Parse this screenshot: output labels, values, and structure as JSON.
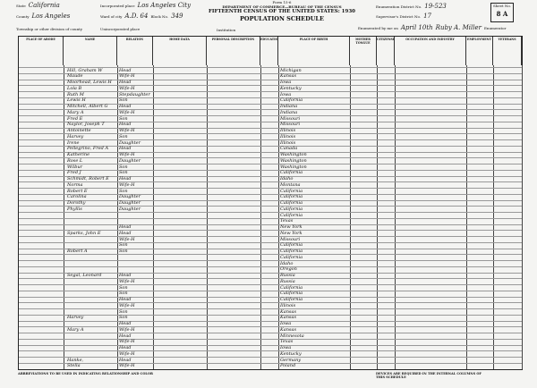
{
  "header": {
    "state_label": "State",
    "state": "California",
    "county_label": "County",
    "county": "Los Angeles",
    "township_label": "Township or other division of county",
    "place_label": "Incorporated place",
    "place": "Los Angeles City",
    "ward_label": "Ward of city",
    "ward": "A.D. 64",
    "block_label": "Block No.",
    "block": "349",
    "unincorporated_label": "Unincorporated place",
    "institution_label": "Institution",
    "form": "Form 15-6",
    "department": "DEPARTMENT OF COMMERCE—BUREAU OF THE CENSUS",
    "title": "FIFTEENTH CENSUS OF THE UNITED STATES: 1930",
    "subtitle": "POPULATION SCHEDULE",
    "enumeration_label": "Enumeration District No.",
    "enumeration": "19-523",
    "supervisor_label": "Supervisor's District No.",
    "supervisor": "17",
    "enumerated_label": "Enumerated by me on",
    "enumerated_date": "April 10th",
    "enumerator": "Ruby A. Miller",
    "enumerator_suffix": "Enumerator",
    "sheet_label": "Sheet No.",
    "sheet": "8 A"
  },
  "columns": [
    "PLACE OF ABODE",
    "NAME",
    "RELATION",
    "HOME DATA",
    "PERSONAL DESCRIPTION",
    "EDUCATION",
    "PLACE OF BIRTH",
    "MOTHER TONGUE",
    "CITIZENSHIP",
    "OCCUPATION AND INDUSTRY",
    "EMPLOYMENT",
    "VETERANS"
  ],
  "rows": [
    {
      "name": "Hill, Graham W",
      "rel": "Head",
      "birth": "Michigan"
    },
    {
      "name": "Maude",
      "rel": "Wife-H",
      "birth": "Kansas"
    },
    {
      "name": "Moorhead, Lewis H",
      "rel": "Head",
      "birth": "Iowa"
    },
    {
      "name": "Lola B",
      "rel": "Wife-H",
      "birth": "Kentucky"
    },
    {
      "name": "Ruth M",
      "rel": "Stepdaughter",
      "birth": "Iowa"
    },
    {
      "name": "Lewis H",
      "rel": "Son",
      "birth": "California"
    },
    {
      "name": "Mitchell, Albert G",
      "rel": "Head",
      "birth": "Indiana"
    },
    {
      "name": "Mary A",
      "rel": "Wife-H",
      "birth": "Indiana"
    },
    {
      "name": "Fred E",
      "rel": "Son",
      "birth": "Missouri"
    },
    {
      "name": "Naylor, Joseph T",
      "rel": "Head",
      "birth": "Missouri"
    },
    {
      "name": "Antoinette",
      "rel": "Wife-H",
      "birth": "Illinois"
    },
    {
      "name": "Harvey",
      "rel": "Son",
      "birth": "Illinois"
    },
    {
      "name": "Irene",
      "rel": "Daughter",
      "birth": "Illinois"
    },
    {
      "name": "Pellegrino, Fred A",
      "rel": "Head",
      "birth": "Canada"
    },
    {
      "name": "Katherine",
      "rel": "Wife-H",
      "birth": "Washington"
    },
    {
      "name": "Rose L",
      "rel": "Daughter",
      "birth": "Washington"
    },
    {
      "name": "Wilbur",
      "rel": "Son",
      "birth": "Washington"
    },
    {
      "name": "Fred J",
      "rel": "Son",
      "birth": "California"
    },
    {
      "name": "Schmidt, Robert E",
      "rel": "Head",
      "birth": "Idaho"
    },
    {
      "name": "Norma",
      "rel": "Wife-H",
      "birth": "Montana"
    },
    {
      "name": "Robert E",
      "rel": "Son",
      "birth": "California"
    },
    {
      "name": "Carolina",
      "rel": "Daughter",
      "birth": "California"
    },
    {
      "name": "Dorothy",
      "rel": "Daughter",
      "birth": "California"
    },
    {
      "name": "Phyllis",
      "rel": "Daughter",
      "birth": "California"
    },
    {
      "name": "",
      "rel": "",
      "birth": "California"
    },
    {
      "name": "",
      "rel": "",
      "birth": "Texas"
    },
    {
      "name": "",
      "rel": "Head",
      "birth": "New York"
    },
    {
      "name": "Sparks, John E",
      "rel": "Head",
      "birth": "New York"
    },
    {
      "name": "",
      "rel": "Wife-H",
      "birth": "Missouri"
    },
    {
      "name": "",
      "rel": "Son",
      "birth": "California"
    },
    {
      "name": "Robert A",
      "rel": "Son",
      "birth": "California"
    },
    {
      "name": "",
      "rel": "",
      "birth": "California"
    },
    {
      "name": "",
      "rel": "",
      "birth": "Idaho"
    },
    {
      "name": "",
      "rel": "",
      "birth": "Oregon"
    },
    {
      "name": "Segal, Leonard",
      "rel": "Head",
      "birth": "Russia"
    },
    {
      "name": "",
      "rel": "Wife-H",
      "birth": "Russia"
    },
    {
      "name": "",
      "rel": "Son",
      "birth": "California"
    },
    {
      "name": "",
      "rel": "Son",
      "birth": "California"
    },
    {
      "name": "",
      "rel": "Head",
      "birth": "California"
    },
    {
      "name": "",
      "rel": "Wife-H",
      "birth": "Illinois"
    },
    {
      "name": "",
      "rel": "Son",
      "birth": "Kansas"
    },
    {
      "name": "Harvey",
      "rel": "Son",
      "birth": "Kansas"
    },
    {
      "name": "",
      "rel": "Head",
      "birth": "Iowa"
    },
    {
      "name": "Mary A",
      "rel": "Wife-H",
      "birth": "Kansas"
    },
    {
      "name": "",
      "rel": "Head",
      "birth": "Minnesota"
    },
    {
      "name": "",
      "rel": "Wife-H",
      "birth": "Texas"
    },
    {
      "name": "",
      "rel": "Head",
      "birth": "Iowa"
    },
    {
      "name": "",
      "rel": "Wife-H",
      "birth": "Kentucky"
    },
    {
      "name": "Hanke, ",
      "rel": "Head",
      "birth": "Germany"
    },
    {
      "name": "Stella",
      "rel": "Wife-H",
      "birth": "Poland"
    }
  ],
  "footer_left": "ABBREVIATIONS TO BE USED IN INDICATING RELATIONSHIP AND COLOR",
  "footer_right": "DEVICES ARE REQUIRED IN THE INTERNAL COLUMNS OF THIS SCHEDULE"
}
